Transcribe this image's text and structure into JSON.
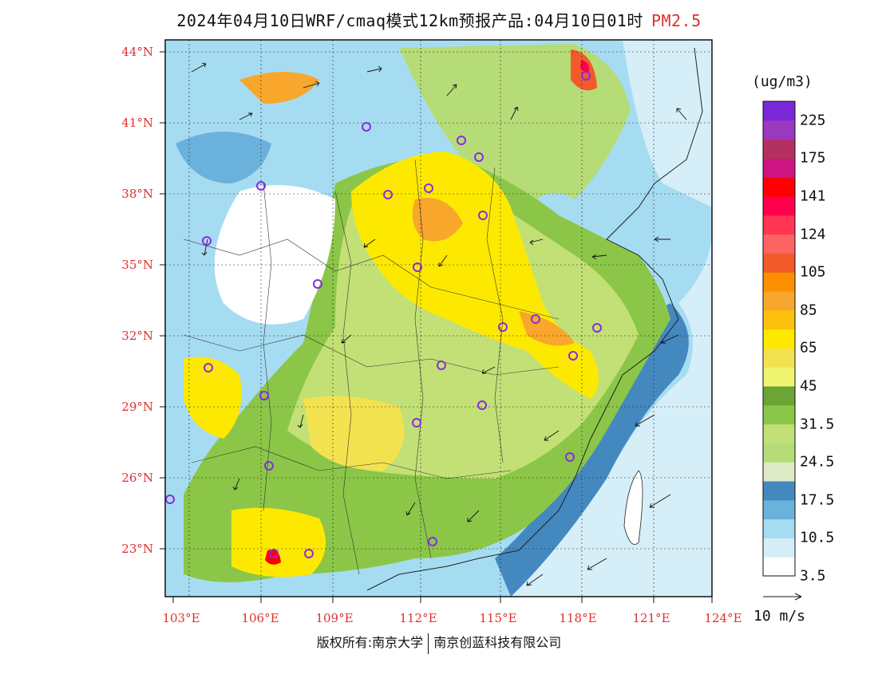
{
  "title": {
    "main": "2024年04月10日WRF/cmaq模式12km预报产品:04月10日01时",
    "pollutant": "PM2.5"
  },
  "axes": {
    "lat_labels": [
      "44°N",
      "41°N",
      "38°N",
      "35°N",
      "32°N",
      "29°N",
      "26°N",
      "23°N"
    ],
    "lon_labels": [
      "103°E",
      "106°E",
      "109°E",
      "112°E",
      "115°E",
      "118°E",
      "121°E",
      "124°E"
    ]
  },
  "colorbar": {
    "unit": "(ug/m3)",
    "colors": [
      "#ffffff",
      "#d6eef8",
      "#a6dcf2",
      "#6ab1dc",
      "#4488c0",
      "#deebc6",
      "#b6dc78",
      "#c2e076",
      "#8cc648",
      "#6aa535",
      "#f0f471",
      "#f3e250",
      "#fde900",
      "#fbc10c",
      "#f9a62c",
      "#fb8f00",
      "#f25a2a",
      "#fc6464",
      "#ff3553",
      "#ff004b",
      "#ff0000",
      "#cc1580",
      "#b33060",
      "#9b38c0",
      "#7a28d8"
    ],
    "labels": [
      "225",
      "175",
      "141",
      "124",
      "105",
      "85",
      "65",
      "45",
      "31.5",
      "24.5",
      "17.5",
      "10.5",
      "3.5"
    ]
  },
  "wind_scale": {
    "label": "10 m/s"
  },
  "footer": {
    "left": "版权所有:南京大学",
    "right": "南京创蓝科技有限公司"
  }
}
